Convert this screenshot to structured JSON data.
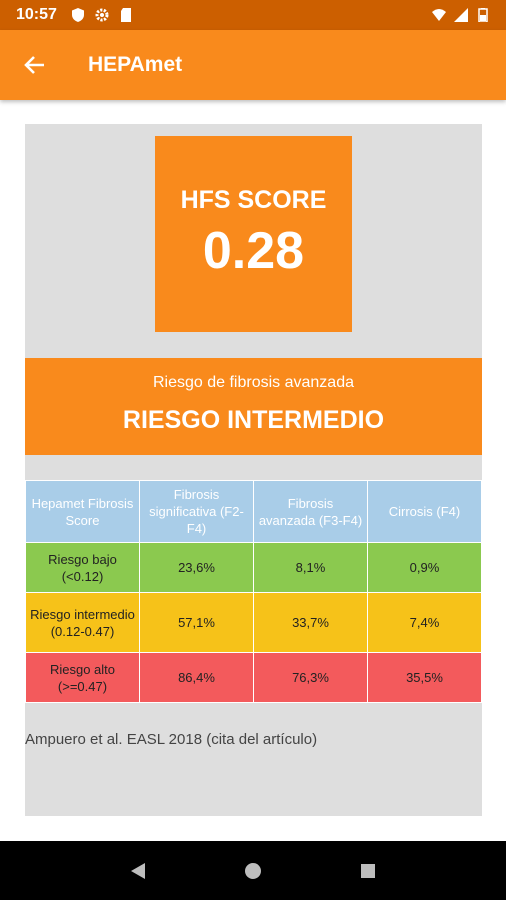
{
  "status_bar": {
    "time": "10:57"
  },
  "app_bar": {
    "title": "HEPAmet"
  },
  "score": {
    "label": "HFS SCORE",
    "value": "0.28"
  },
  "risk": {
    "caption": "Riesgo de fibrosis avanzada",
    "level": "RIESGO INTERMEDIO"
  },
  "table": {
    "headers": [
      "Hepamet Fibrosis Score",
      "Fibrosis significativa (F2-F4)",
      "Fibrosis avanzada (F3-F4)",
      "Cirrosis (F4)"
    ],
    "rows": [
      {
        "label": "Riesgo bajo (<0.12)",
        "values": [
          "23,6%",
          "8,1%",
          "0,9%"
        ]
      },
      {
        "label": "Riesgo intermedio (0.12-0.47)",
        "values": [
          "57,1%",
          "33,7%",
          "7,4%"
        ]
      },
      {
        "label": "Riesgo alto (>=0.47)",
        "values": [
          "86,4%",
          "76,3%",
          "35,5%"
        ]
      }
    ]
  },
  "citation": "Ampuero et al. EASL 2018 (cita del artículo)",
  "colors": {
    "accent": "#f98a1c",
    "status_bar": "#cc5f00",
    "header": "#a9cde8",
    "low": "#8bc94f",
    "mid": "#f6c219",
    "high": "#f35a5c"
  }
}
